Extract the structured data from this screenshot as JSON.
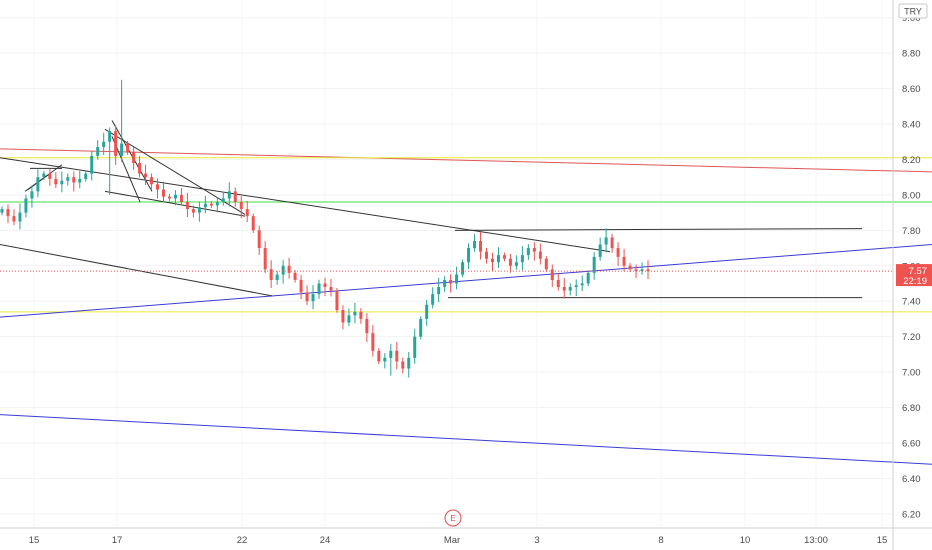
{
  "chart_data": {
    "type": "candlestick",
    "currency": "TRY",
    "y_ticks": [
      "9.00",
      "8.80",
      "8.60",
      "8.40",
      "8.20",
      "8.00",
      "7.80",
      "7.60",
      "7.40",
      "7.20",
      "7.00",
      "6.80",
      "6.60",
      "6.40",
      "6.20"
    ],
    "ylim": [
      6.12,
      9.1
    ],
    "x_ticks": [
      "15",
      "17",
      "22",
      "24",
      "Mar",
      "3",
      "8",
      "10",
      "13:00",
      "15"
    ],
    "last_price": {
      "price": "7.57",
      "countdown": "22:19",
      "value": 7.57
    },
    "event_marker": "E",
    "colors": {
      "up": "#26a69a",
      "down": "#ef5350",
      "tag": "#ef5350"
    },
    "candles_closes": [
      7.92,
      7.88,
      7.85,
      7.9,
      7.98,
      8.02,
      8.1,
      8.12,
      8.09,
      8.06,
      8.08,
      8.1,
      8.07,
      8.09,
      8.12,
      8.22,
      8.27,
      8.3,
      8.36,
      8.22,
      8.29,
      8.24,
      8.18,
      8.12,
      8.1,
      8.06,
      8.03,
      7.99,
      7.98,
      8.0,
      7.96,
      7.92,
      7.9,
      7.93,
      7.95,
      7.94,
      7.96,
      7.98,
      8.02,
      7.96,
      7.92,
      7.88,
      7.8,
      7.7,
      7.58,
      7.52,
      7.55,
      7.6,
      7.56,
      7.52,
      7.45,
      7.4,
      7.44,
      7.5,
      7.48,
      7.46,
      7.35,
      7.28,
      7.32,
      7.34,
      7.3,
      7.22,
      7.12,
      7.06,
      7.08,
      7.12,
      7.06,
      7.02,
      7.08,
      7.2,
      7.3,
      7.38,
      7.44,
      7.48,
      7.52,
      7.5,
      7.55,
      7.62,
      7.7,
      7.74,
      7.68,
      7.64,
      7.62,
      7.66,
      7.64,
      7.6,
      7.62,
      7.66,
      7.7,
      7.68,
      7.64,
      7.58,
      7.52,
      7.48,
      7.46,
      7.48,
      7.49,
      7.5,
      7.56,
      7.65,
      7.72,
      7.76,
      7.7,
      7.65,
      7.6,
      7.58,
      7.57,
      7.58,
      7.57
    ],
    "trend_lines": [
      {
        "color": "#e05555",
        "points": [
          [
            0,
            8.26
          ],
          [
            932,
            8.13
          ]
        ]
      },
      {
        "color": "#e8e83a",
        "points": [
          [
            0,
            8.21
          ],
          [
            932,
            8.21
          ]
        ]
      },
      {
        "color": "#3ee03e",
        "points": [
          [
            0,
            7.96
          ],
          [
            932,
            7.96
          ]
        ]
      },
      {
        "color": "#e8e83a",
        "points": [
          [
            0,
            7.34
          ],
          [
            932,
            7.34
          ]
        ]
      },
      {
        "color": "#3b3bd8",
        "points": [
          [
            0,
            7.31
          ],
          [
            932,
            7.72
          ]
        ]
      },
      {
        "color": "#3b3bd8",
        "points": [
          [
            0,
            6.76
          ],
          [
            932,
            6.48
          ]
        ]
      },
      {
        "color": "#333333",
        "points": [
          [
            0,
            8.21
          ],
          [
            610,
            7.68
          ]
        ]
      },
      {
        "color": "#333333",
        "points": [
          [
            0,
            7.72
          ],
          [
            272,
            7.43
          ]
        ]
      },
      {
        "color": "#333333",
        "points": [
          [
            455,
            7.8
          ],
          [
            862,
            7.81
          ]
        ]
      },
      {
        "color": "#333333",
        "points": [
          [
            448,
            7.42
          ],
          [
            862,
            7.42
          ]
        ]
      },
      {
        "color": "#333333",
        "points": [
          [
            105,
            8.37
          ],
          [
            245,
            7.89
          ]
        ]
      },
      {
        "color": "#333333",
        "points": [
          [
            105,
            8.02
          ],
          [
            245,
            7.88
          ]
        ]
      },
      {
        "color": "#333333",
        "points": [
          [
            112,
            8.42
          ],
          [
            152,
            8.02
          ]
        ]
      },
      {
        "color": "#333333",
        "points": [
          [
            112,
            8.33
          ],
          [
            140,
            7.96
          ]
        ]
      },
      {
        "color": "#333333",
        "points": [
          [
            25,
            8.02
          ],
          [
            62,
            8.17
          ]
        ]
      },
      {
        "color": "#333333",
        "points": [
          [
            30,
            8.15
          ],
          [
            62,
            8.15
          ]
        ]
      },
      {
        "color": "#333333",
        "points": [
          [
            28,
            8.03
          ],
          [
            50,
            8.12
          ]
        ]
      }
    ]
  }
}
